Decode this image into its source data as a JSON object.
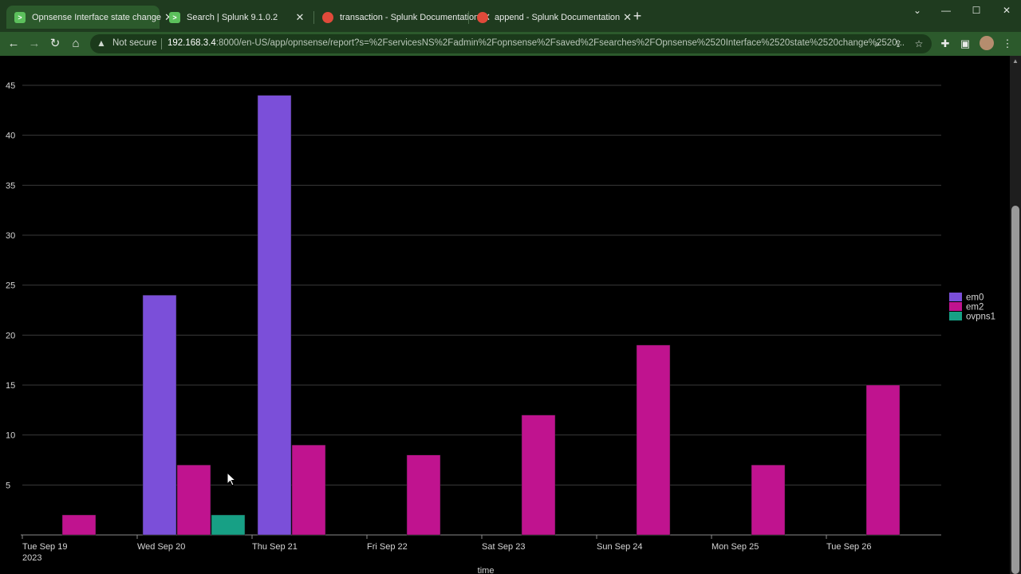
{
  "browser": {
    "tabs": [
      {
        "title": "Opnsense Interface state change",
        "icon": "splunk-icon",
        "active": true
      },
      {
        "title": "Search | Splunk 9.1.0.2",
        "icon": "splunk-icon",
        "active": false
      },
      {
        "title": "transaction - Splunk Documentation",
        "icon": "splunk-docs-icon",
        "active": false
      },
      {
        "title": "append - Splunk Documentation",
        "icon": "splunk-docs-icon",
        "active": false
      }
    ],
    "not_secure_label": "Not secure",
    "url_host": "192.168.3.4",
    "url_rest": ":8000/en-US/app/opnsense/report?s=%2FservicesNS%2Fadmin%2Fopnsense%2Fsaved%2Fsearches%2FOpnsense%2520Interface%2520state%2520change%2520..."
  },
  "chart_data": {
    "type": "bar",
    "categories": [
      "Tue Sep 19",
      "Wed Sep 20",
      "Thu Sep 21",
      "Fri Sep 22",
      "Sat Sep 23",
      "Sun Sep 24",
      "Mon Sep 25",
      "Tue Sep 26"
    ],
    "first_category_year": "2023",
    "xlabel": "_time",
    "ylabel": "",
    "ylim": [
      0,
      45
    ],
    "yticks": [
      5,
      10,
      15,
      20,
      25,
      30,
      35,
      40,
      45
    ],
    "grid": true,
    "legend_position": "right",
    "series": [
      {
        "name": "em0",
        "color": "#7b4fd9",
        "values": [
          0,
          24,
          44,
          0,
          0,
          0,
          0,
          0
        ]
      },
      {
        "name": "em2",
        "color": "#c0138f",
        "values": [
          2,
          7,
          9,
          8,
          12,
          19,
          7,
          15
        ]
      },
      {
        "name": "ovpns1",
        "color": "#17a085",
        "values": [
          0,
          2,
          0,
          0,
          0,
          0,
          0,
          0
        ]
      }
    ]
  }
}
